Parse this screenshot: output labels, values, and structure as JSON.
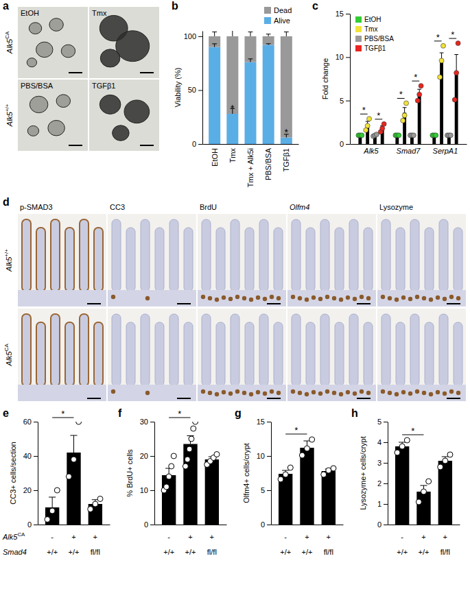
{
  "figure": {
    "panel_labels": [
      "a",
      "b",
      "c",
      "d",
      "e",
      "f",
      "g",
      "h"
    ],
    "panel_a": {
      "row_labels": [
        {
          "text": "Alk5",
          "sup": "CA"
        },
        {
          "text": "Alk5",
          "sup": "+/+"
        }
      ],
      "image_labels": [
        "EtOH",
        "Tmx",
        "PBS/BSA",
        "TGFβ1"
      ]
    },
    "panel_d": {
      "row_labels": [
        {
          "text": "Alk5",
          "sup": "+/+"
        },
        {
          "text": "Alk5",
          "sup": "CA"
        }
      ],
      "column_labels": [
        "p-SMAD3",
        "CC3",
        "BrdU",
        "Olfm4",
        "Lysozyme"
      ]
    }
  },
  "chart_data": [
    {
      "type": "bar",
      "stacked": true,
      "y_label": "Viability (%)",
      "categories": [
        "EtOH",
        "Tmx",
        "Tmx + Alk5i",
        "PBS/BSA",
        "TGFβ1"
      ],
      "series": [
        {
          "name": "Alive",
          "color": "#5aaee6",
          "values": [
            90,
            28,
            76,
            92,
            6
          ],
          "errors": [
            3,
            5,
            3,
            1,
            3
          ]
        },
        {
          "name": "Dead",
          "color": "#999999",
          "values": [
            10,
            72,
            24,
            8,
            94
          ],
          "errors": [
            4,
            6,
            4,
            2,
            4
          ]
        }
      ],
      "ylim": [
        0,
        105
      ],
      "yticks": [
        0,
        50,
        100
      ],
      "legend": "top-right",
      "annotations": [
        {
          "text": "*",
          "category": 1
        },
        {
          "text": "*",
          "category": 4
        }
      ]
    },
    {
      "type": "bar",
      "y_label": "Fold change",
      "categories": [
        "Alk5",
        "Smad7",
        "SerpA1"
      ],
      "series": [
        {
          "name": "EtOH",
          "color": "#33cc33",
          "values": [
            1,
            1,
            1
          ],
          "errors": [
            0.05,
            0.05,
            0.05
          ],
          "points": [
            [
              1,
              1,
              1
            ],
            [
              1,
              1,
              1
            ],
            [
              1,
              1,
              1
            ]
          ]
        },
        {
          "name": "Tmx",
          "color": "#f2e23a",
          "values": [
            2.2,
            3.6,
            9.5
          ],
          "errors": [
            0.4,
            0.6,
            1.0
          ],
          "points": [
            [
              1.6,
              2.1,
              2.9
            ],
            [
              2.7,
              3.3,
              4.7
            ],
            [
              7.7,
              9.6,
              11.3
            ]
          ]
        },
        {
          "name": "PBS/BSA",
          "color": "#9a9a9a",
          "values": [
            1,
            1,
            1
          ],
          "errors": [
            0.1,
            0.05,
            0.05
          ],
          "points": [
            [
              0.9,
              1.0,
              1.1
            ],
            [
              1,
              1,
              1
            ],
            [
              1,
              1,
              1
            ]
          ]
        },
        {
          "name": "TGFβ1",
          "color": "#e8261f",
          "values": [
            1.8,
            5.8,
            8.3
          ],
          "errors": [
            0.3,
            0.5,
            2.0
          ],
          "points": [
            [
              1.4,
              1.8,
              2.3
            ],
            [
              5.0,
              5.7,
              6.7
            ],
            [
              5.1,
              8.2,
              11.6
            ]
          ]
        }
      ],
      "ylim": [
        0,
        15
      ],
      "yticks": [
        0,
        5,
        10,
        15
      ],
      "legend": "top-left",
      "annotations": [
        {
          "text": "*",
          "category": 0,
          "series": [
            0,
            1
          ]
        },
        {
          "text": "*",
          "category": 0,
          "series": [
            2,
            3
          ]
        },
        {
          "text": "*",
          "category": 1,
          "series": [
            0,
            1
          ]
        },
        {
          "text": "*",
          "category": 1,
          "series": [
            2,
            3
          ]
        },
        {
          "text": "*",
          "category": 2,
          "series": [
            0,
            1
          ]
        },
        {
          "text": "*",
          "category": 2,
          "series": [
            2,
            3
          ]
        }
      ]
    },
    {
      "type": "bar",
      "y_label": "CC3+ cells/section",
      "color": "#000000",
      "categories": [
        null,
        null,
        null
      ],
      "values": [
        10,
        42,
        12
      ],
      "errors": [
        6,
        10,
        2.5
      ],
      "points": [
        [
          3,
          8,
          20
        ],
        [
          28,
          38,
          60
        ],
        [
          9,
          12,
          15
        ]
      ],
      "ylim": [
        0,
        60
      ],
      "yticks": [
        0,
        20,
        40,
        60
      ],
      "x_table": [
        {
          "label": {
            "text": "Alk5",
            "sup": "CA"
          },
          "values": [
            "-",
            "+",
            "+"
          ]
        },
        {
          "label": {
            "text": "Smad4"
          },
          "values": [
            "+/+",
            "+/+",
            "fl/fl"
          ]
        }
      ],
      "annotations": [
        {
          "text": "*",
          "categories": [
            0,
            1
          ]
        }
      ]
    },
    {
      "type": "bar",
      "y_label": "% BrdU+ cells",
      "color": "#000000",
      "categories": [
        null,
        null,
        null
      ],
      "values": [
        14.4,
        23.5,
        19
      ],
      "errors": [
        2,
        2.4,
        0.8
      ],
      "points": [
        [
          10,
          11,
          14,
          17,
          20
        ],
        [
          17,
          19,
          22,
          25,
          28,
          30
        ],
        [
          17.5,
          18.5,
          19.5,
          20.5
        ]
      ],
      "ylim": [
        0,
        30
      ],
      "yticks": [
        0,
        10,
        20,
        30
      ],
      "x_table": [
        {
          "values": [
            "-",
            "+",
            "+"
          ]
        },
        {
          "values": [
            "+/+",
            "+/+",
            "fl/fl"
          ]
        }
      ],
      "annotations": [
        {
          "text": "*",
          "categories": [
            0,
            1
          ]
        }
      ]
    },
    {
      "type": "bar",
      "y_label": "Olfm4+ cells/crypt",
      "color": "#000000",
      "categories": [
        null,
        null,
        null
      ],
      "values": [
        7.4,
        11.2,
        7.8
      ],
      "errors": [
        0.5,
        1.0,
        0.3
      ],
      "points": [
        [
          6.6,
          7.3,
          8.3
        ],
        [
          10.1,
          11.1,
          12.4
        ],
        [
          7.3,
          7.9,
          8.2
        ]
      ],
      "ylim": [
        0,
        15
      ],
      "yticks": [
        0,
        5,
        10,
        15
      ],
      "x_table": [
        {
          "values": [
            "-",
            "+",
            "+"
          ]
        },
        {
          "values": [
            "+/+",
            "+/+",
            "fl/fl"
          ]
        }
      ],
      "annotations": [
        {
          "text": "*",
          "categories": [
            0,
            1
          ]
        }
      ]
    },
    {
      "type": "bar",
      "y_label": "Lysozyme+ cells/crypt",
      "color": "#000000",
      "categories": [
        null,
        null,
        null
      ],
      "values": [
        3.8,
        1.6,
        3.1
      ],
      "errors": [
        0.2,
        0.3,
        0.2
      ],
      "points": [
        [
          3.5,
          3.8,
          4.1
        ],
        [
          1.1,
          1.6,
          2.1
        ],
        [
          2.8,
          3.1,
          3.4
        ]
      ],
      "ylim": [
        0,
        5
      ],
      "yticks": [
        0,
        1,
        2,
        3,
        4,
        5
      ],
      "x_table": [
        {
          "values": [
            "-",
            "+",
            "+"
          ]
        },
        {
          "values": [
            "+/+",
            "+/+",
            "fl/fl"
          ]
        }
      ],
      "annotations": [
        {
          "text": "*",
          "categories": [
            0,
            1
          ]
        }
      ]
    }
  ]
}
